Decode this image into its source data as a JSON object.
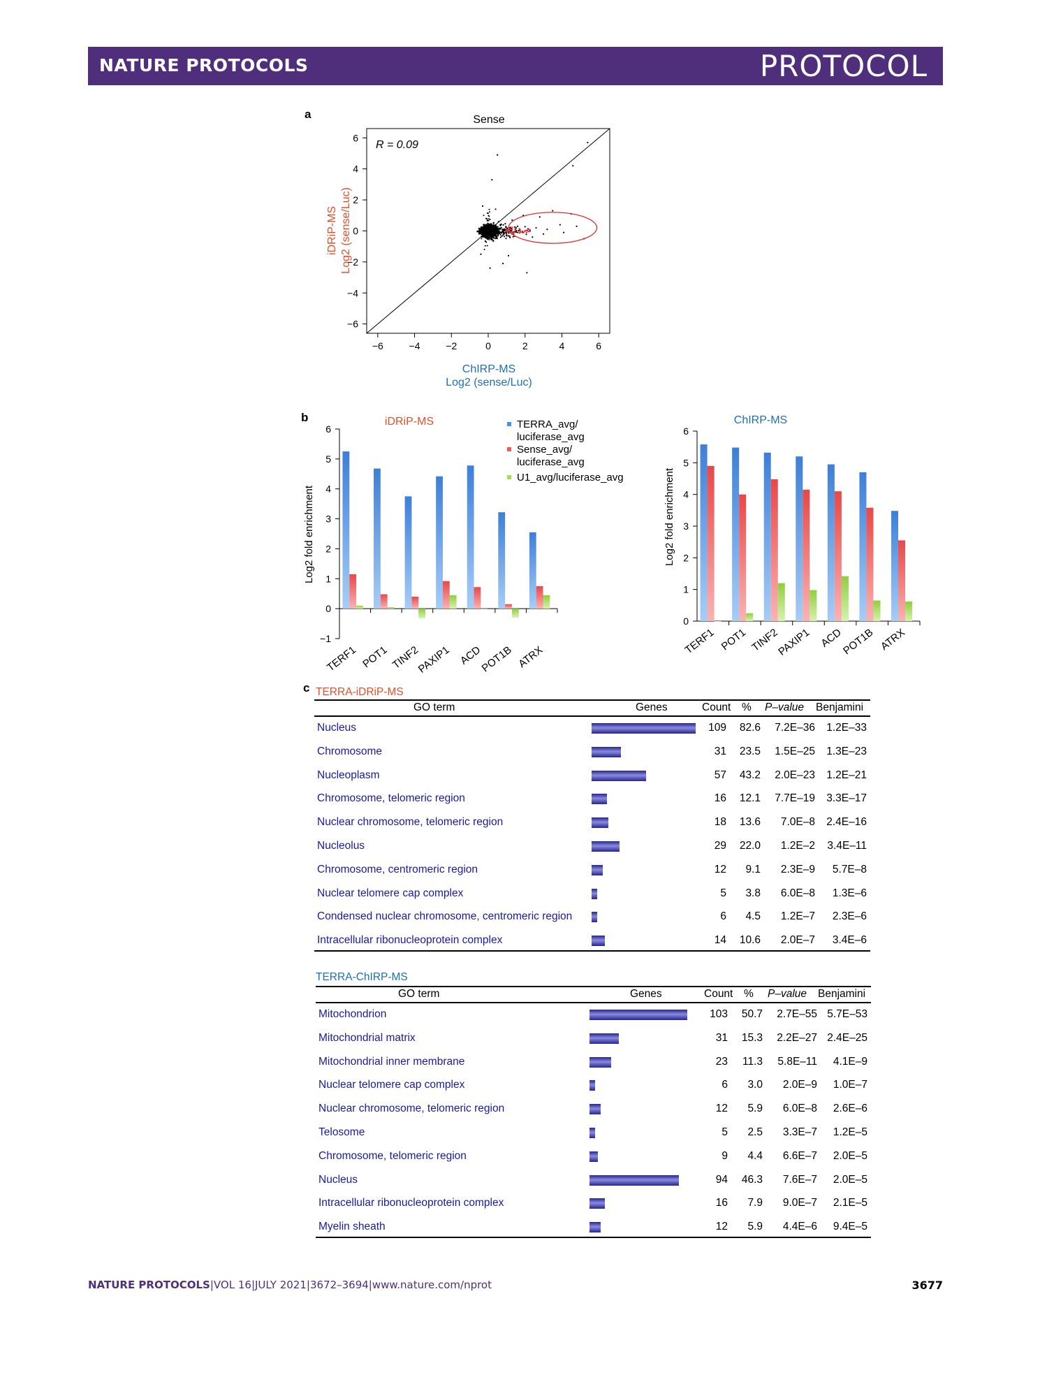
{
  "header": {
    "journal": "NATURE PROTOCOLS",
    "article_type": "PROTOCOL"
  },
  "panels": {
    "a": "a",
    "b": "b",
    "c": "c"
  },
  "chart_data": [
    {
      "id": "scatter-a",
      "type": "scatter",
      "title": "Sense",
      "xlabel": "ChIRP-MS",
      "xlabel2": "Log2 (sense/Luc)",
      "ylabel": "iDRiP-MS",
      "ylabel2": "Log2 (sense/Luc)",
      "annotation": "R = 0.09",
      "xlim": [
        -6.6,
        6.6
      ],
      "ylim": [
        -6.6,
        6.6
      ],
      "xticks": [
        "−6",
        "−4",
        "−2",
        "0",
        "2",
        "4",
        "6"
      ],
      "yticks": [
        "6",
        "4",
        "2",
        "0",
        "−2",
        "−4",
        "−6"
      ],
      "tick_values": [
        -6,
        -4,
        -2,
        0,
        2,
        4,
        6
      ],
      "xlabel_color": "#1f6fb5",
      "ylabel_color": "#e2502a",
      "highlight_ellipse": {
        "cx": 3.5,
        "cy": 0.2,
        "rx": 2.4,
        "ry": 1.0,
        "color": "#e03030"
      },
      "outliers": [
        [
          0.5,
          4.9
        ],
        [
          0.2,
          3.3
        ],
        [
          5.4,
          5.7
        ],
        [
          4.6,
          4.2
        ],
        [
          2.1,
          -2.7
        ],
        [
          0.8,
          -2.1
        ],
        [
          -0.3,
          1.6
        ],
        [
          0.4,
          1.4
        ],
        [
          5.2,
          -0.5
        ],
        [
          4.5,
          1.1
        ],
        [
          3.5,
          1.3
        ],
        [
          2.8,
          0.9
        ],
        [
          3.9,
          0.4
        ],
        [
          4.1,
          -0.1
        ],
        [
          1.6,
          0.3
        ],
        [
          2.4,
          -0.4
        ],
        [
          3.2,
          0.1
        ],
        [
          1.1,
          -1.6
        ],
        [
          -0.4,
          -1.5
        ],
        [
          0.1,
          -2.4
        ],
        [
          1.9,
          1.0
        ],
        [
          2.6,
          0.2
        ],
        [
          4.8,
          0.3
        ],
        [
          3.0,
          -0.2
        ],
        [
          1.3,
          0.7
        ]
      ]
    },
    {
      "id": "bar-idrip",
      "type": "bar",
      "title": "iDRiP-MS",
      "ylabel": "Log2 fold enrichment",
      "ylim": [
        -1,
        6
      ],
      "yticks": [
        "6",
        "5",
        "4",
        "3",
        "2",
        "1",
        "0",
        "−1"
      ],
      "tick_values": [
        6,
        5,
        4,
        3,
        2,
        1,
        0,
        -1
      ],
      "categories": [
        "TERF1",
        "POT1",
        "TINF2",
        "PAXIP1",
        "ACD",
        "POT1B",
        "ATRX"
      ],
      "series": [
        {
          "name": "TERRA_avg/ luciferase_avg",
          "color": "#4a90e2",
          "values": [
            5.25,
            4.68,
            3.75,
            4.42,
            4.78,
            3.22,
            2.55
          ]
        },
        {
          "name": "Sense_avg/ luciferase_avg",
          "color": "#f05a5a",
          "values": [
            1.15,
            0.48,
            0.4,
            0.92,
            0.72,
            0.15,
            0.75
          ]
        },
        {
          "name": "U1_avg/luciferase_avg",
          "color": "#a4dc5a",
          "values": [
            0.1,
            0.05,
            -0.32,
            0.45,
            0.0,
            -0.3,
            0.45
          ]
        }
      ],
      "legend": {
        "items": [
          "TERRA_avg/",
          "luciferase_avg",
          "Sense_avg/",
          "luciferase_avg",
          "U1_avg/luciferase_avg"
        ],
        "placement": "top-right"
      }
    },
    {
      "id": "bar-chirp",
      "type": "bar",
      "title": "ChIRP-MS",
      "ylabel": "Log2 fold enrichment",
      "ylim": [
        0,
        6
      ],
      "yticks": [
        "6",
        "5",
        "4",
        "3",
        "2",
        "1",
        "0"
      ],
      "tick_values": [
        6,
        5,
        4,
        3,
        2,
        1,
        0
      ],
      "categories": [
        "TERF1",
        "POT1",
        "TINF2",
        "PAXIP1",
        "ACD",
        "POT1B",
        "ATRX"
      ],
      "series": [
        {
          "color": "#4a90e2",
          "values": [
            5.58,
            5.48,
            5.32,
            5.2,
            4.95,
            4.7,
            3.48
          ]
        },
        {
          "color": "#f05a5a",
          "values": [
            4.9,
            4.0,
            4.48,
            4.15,
            4.1,
            3.58,
            2.55
          ]
        },
        {
          "color": "#a4dc5a",
          "values": [
            0.0,
            0.25,
            1.2,
            0.98,
            1.42,
            0.65,
            0.62
          ]
        }
      ]
    }
  ],
  "table1": {
    "title": "TERRA-iDRiP-MS",
    "title_color": "#e2502a",
    "headers": {
      "go_term": "GO term",
      "genes": "Genes",
      "count": "Count",
      "percent": "%",
      "pvalue": "P–value",
      "benjamini": "Benjamini"
    },
    "rows": [
      {
        "term": "Nucleus",
        "count": "109",
        "percent": "82.6",
        "pvalue": "7.2E–36",
        "benjamini": "1.2E–33",
        "bar": 0.826
      },
      {
        "term": "Chromosome",
        "count": "31",
        "percent": "23.5",
        "pvalue": "1.5E–25",
        "benjamini": "1.3E–23",
        "bar": 0.235
      },
      {
        "term": "Nucleoplasm",
        "count": "57",
        "percent": "43.2",
        "pvalue": "2.0E–23",
        "benjamini": "1.2E–21",
        "bar": 0.432
      },
      {
        "term": "Chromosome, telomeric region",
        "count": "16",
        "percent": "12.1",
        "pvalue": "7.7E–19",
        "benjamini": "3.3E–17",
        "bar": 0.121
      },
      {
        "term": "Nuclear chromosome, telomeric region",
        "count": "18",
        "percent": "13.6",
        "pvalue": "7.0E–8",
        "benjamini": "2.4E–16",
        "bar": 0.136
      },
      {
        "term": "Nucleolus",
        "count": "29",
        "percent": "22.0",
        "pvalue": "1.2E–2",
        "benjamini": "3.4E–11",
        "bar": 0.22
      },
      {
        "term": "Chromosome, centromeric region",
        "count": "12",
        "percent": "9.1",
        "pvalue": "2.3E–9",
        "benjamini": "5.7E–8",
        "bar": 0.091
      },
      {
        "term": "Nuclear telomere cap complex",
        "count": "5",
        "percent": "3.8",
        "pvalue": "6.0E–8",
        "benjamini": "1.3E–6",
        "bar": 0.038
      },
      {
        "term": "Condensed nuclear chromosome, centromeric region",
        "count": "6",
        "percent": "4.5",
        "pvalue": "1.2E–7",
        "benjamini": "2.3E–6",
        "bar": 0.045
      },
      {
        "term": "Intracellular ribonucleoprotein complex",
        "count": "14",
        "percent": "10.6",
        "pvalue": "2.0E–7",
        "benjamini": "3.4E–6",
        "bar": 0.106
      }
    ]
  },
  "table2": {
    "title": "TERRA-ChIRP-MS",
    "title_color": "#1f6fb5",
    "headers": {
      "go_term": "GO term",
      "genes": "Genes",
      "count": "Count",
      "percent": "%",
      "pvalue": "P–value",
      "benjamini": "Benjamini"
    },
    "rows": [
      {
        "term": "Mitochondrion",
        "count": "103",
        "percent": "50.7",
        "pvalue": "2.7E–55",
        "benjamini": "5.7E–53",
        "bar": 0.507
      },
      {
        "term": "Mitochondrial matrix",
        "count": "31",
        "percent": "15.3",
        "pvalue": "2.2E–27",
        "benjamini": "2.4E–25",
        "bar": 0.153
      },
      {
        "term": "Mitochondrial inner membrane",
        "count": "23",
        "percent": "11.3",
        "pvalue": "5.8E–11",
        "benjamini": "4.1E–9",
        "bar": 0.113
      },
      {
        "term": "Nuclear telomere cap complex",
        "count": "6",
        "percent": "3.0",
        "pvalue": "2.0E–9",
        "benjamini": "1.0E–7",
        "bar": 0.03
      },
      {
        "term": "Nuclear chromosome, telomeric region",
        "count": "12",
        "percent": "5.9",
        "pvalue": "6.0E–8",
        "benjamini": "2.6E–6",
        "bar": 0.059
      },
      {
        "term": "Telosome",
        "count": "5",
        "percent": "2.5",
        "pvalue": "3.3E–7",
        "benjamini": "1.2E–5",
        "bar": 0.025
      },
      {
        "term": "Chromosome, telomeric region",
        "count": "9",
        "percent": "4.4",
        "pvalue": "6.6E–7",
        "benjamini": "2.0E–5",
        "bar": 0.044
      },
      {
        "term": "Nucleus",
        "count": "94",
        "percent": "46.3",
        "pvalue": "7.6E–7",
        "benjamini": "2.0E–5",
        "bar": 0.463
      },
      {
        "term": "Intracellular ribonucleoprotein complex",
        "count": "16",
        "percent": "7.9",
        "pvalue": "9.0E–7",
        "benjamini": "2.1E–5",
        "bar": 0.079
      },
      {
        "term": "Myelin sheath",
        "count": "12",
        "percent": "5.9",
        "pvalue": "4.4E–6",
        "benjamini": "9.4E–5",
        "bar": 0.059
      }
    ]
  },
  "footer": {
    "journal": "NATURE PROTOCOLS",
    "sep": "|",
    "volume": "VOL 16",
    "date": "JULY 2021",
    "pages": "3672–3694",
    "url": "www.nature.com/nprot",
    "page_number": "3677"
  }
}
